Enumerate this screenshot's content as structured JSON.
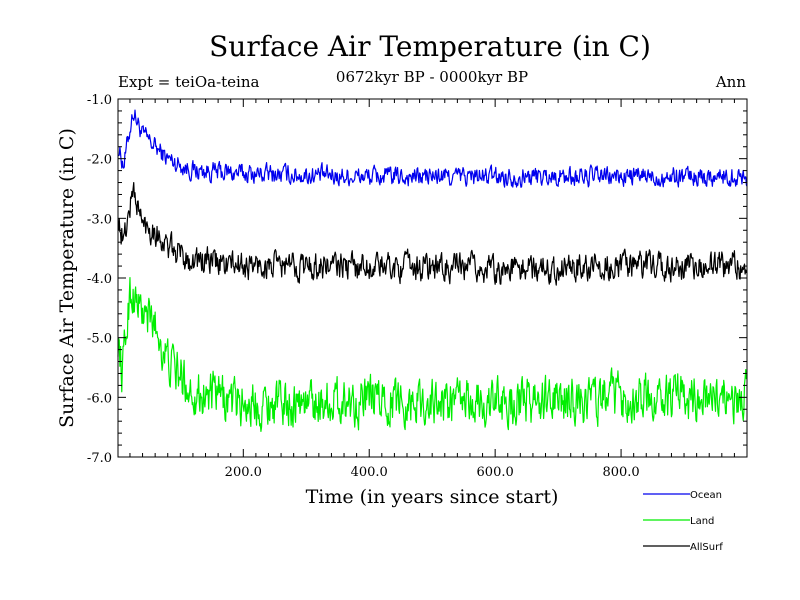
{
  "chart_data": {
    "type": "line",
    "title": "Surface Air Temperature (in C)",
    "subtitle": "0672kyr BP - 0000kyr BP",
    "expt_label": "Expt = teiOa-teina",
    "season_label": "Ann",
    "xlabel": "Time (in years since start)",
    "ylabel": "Surface Air Temperature (in C)",
    "xlim": [
      1,
      1000
    ],
    "ylim": [
      -7.0,
      -1.0
    ],
    "x_ticks": [
      200,
      400,
      600,
      800
    ],
    "x_tick_labels": [
      "200.0",
      "400.0",
      "600.0",
      "800.0"
    ],
    "y_ticks": [
      -1,
      -2,
      -3,
      -4,
      -5,
      -6,
      -7
    ],
    "y_tick_labels": [
      "-1.0",
      "-2.0",
      "-3.0",
      "-4.0",
      "-5.0",
      "-6.0",
      "-7.0"
    ],
    "n_years": 1000,
    "series": [
      {
        "name": "Ocean",
        "color": "#0000ee",
        "keypoints": [
          [
            1,
            -1.8
          ],
          [
            10,
            -2.1
          ],
          [
            25,
            -1.2
          ],
          [
            40,
            -1.6
          ],
          [
            60,
            -1.8
          ],
          [
            80,
            -2.0
          ],
          [
            120,
            -2.2
          ],
          [
            200,
            -2.25
          ],
          [
            400,
            -2.3
          ],
          [
            600,
            -2.3
          ],
          [
            800,
            -2.3
          ],
          [
            1000,
            -2.3
          ]
        ],
        "noise": 0.14
      },
      {
        "name": "Land",
        "color": "#00ee00",
        "keypoints": [
          [
            1,
            -5.0
          ],
          [
            8,
            -5.6
          ],
          [
            20,
            -4.2
          ],
          [
            40,
            -4.6
          ],
          [
            60,
            -4.8
          ],
          [
            80,
            -5.4
          ],
          [
            120,
            -5.9
          ],
          [
            200,
            -6.1
          ],
          [
            400,
            -6.05
          ],
          [
            600,
            -6.1
          ],
          [
            800,
            -6.0
          ],
          [
            1000,
            -6.0
          ]
        ],
        "noise": 0.33
      },
      {
        "name": "AllSurf",
        "color": "#000000",
        "keypoints": [
          [
            1,
            -3.0
          ],
          [
            10,
            -3.4
          ],
          [
            25,
            -2.5
          ],
          [
            40,
            -3.1
          ],
          [
            60,
            -3.2
          ],
          [
            80,
            -3.5
          ],
          [
            120,
            -3.7
          ],
          [
            200,
            -3.8
          ],
          [
            400,
            -3.8
          ],
          [
            600,
            -3.85
          ],
          [
            800,
            -3.8
          ],
          [
            1000,
            -3.8
          ]
        ],
        "noise": 0.2
      }
    ],
    "legend_position": "bottom-right"
  }
}
